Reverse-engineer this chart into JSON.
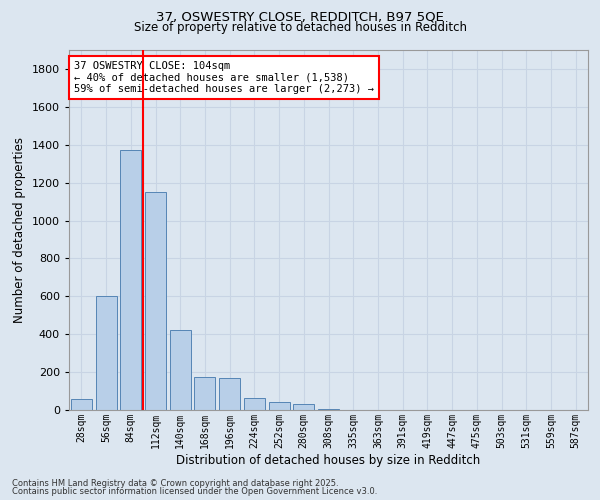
{
  "title1": "37, OSWESTRY CLOSE, REDDITCH, B97 5QE",
  "title2": "Size of property relative to detached houses in Redditch",
  "xlabel": "Distribution of detached houses by size in Redditch",
  "ylabel": "Number of detached properties",
  "categories": [
    "28sqm",
    "56sqm",
    "84sqm",
    "112sqm",
    "140sqm",
    "168sqm",
    "196sqm",
    "224sqm",
    "252sqm",
    "280sqm",
    "308sqm",
    "335sqm",
    "363sqm",
    "391sqm",
    "419sqm",
    "447sqm",
    "475sqm",
    "503sqm",
    "531sqm",
    "559sqm",
    "587sqm"
  ],
  "values": [
    60,
    600,
    1370,
    1150,
    420,
    175,
    170,
    65,
    40,
    30,
    5,
    0,
    0,
    0,
    0,
    0,
    0,
    0,
    0,
    0,
    0
  ],
  "bar_color": "#b8cfe8",
  "bar_edge_color": "#5585b5",
  "grid_color": "#c8d4e4",
  "background_color": "#dce6f0",
  "vline_color": "red",
  "annotation_text": "37 OSWESTRY CLOSE: 104sqm\n← 40% of detached houses are smaller (1,538)\n59% of semi-detached houses are larger (2,273) →",
  "annotation_box_color": "white",
  "annotation_box_edge": "red",
  "ylim": [
    0,
    1900
  ],
  "yticks": [
    0,
    200,
    400,
    600,
    800,
    1000,
    1200,
    1400,
    1600,
    1800
  ],
  "footnote1": "Contains HM Land Registry data © Crown copyright and database right 2025.",
  "footnote2": "Contains public sector information licensed under the Open Government Licence v3.0."
}
